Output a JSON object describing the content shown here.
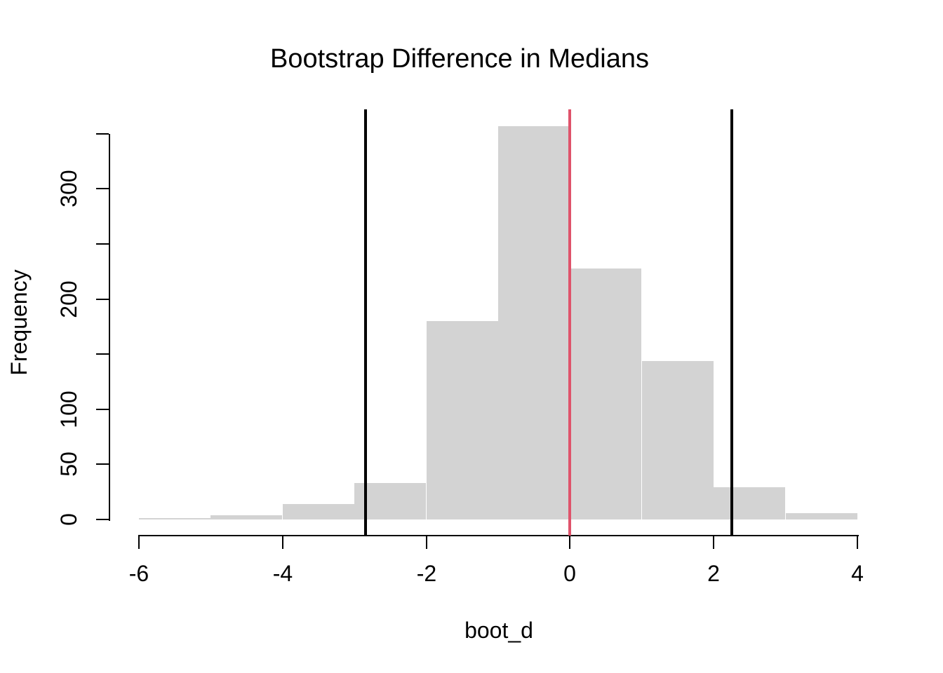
{
  "figure": {
    "title": "Bootstrap Difference in Medians",
    "xlabel": "boot_d",
    "ylabel": "Frequency"
  },
  "chart_data": {
    "type": "bar",
    "subtype": "histogram",
    "title": "Bootstrap Difference in Medians",
    "xlabel": "boot_d",
    "ylabel": "Frequency",
    "bin_breaks": [
      -6,
      -5,
      -4,
      -3,
      -2,
      -1,
      0,
      1,
      2,
      3,
      4
    ],
    "bin_counts": [
      1,
      4,
      14,
      33,
      180,
      357,
      228,
      144,
      29,
      6
    ],
    "x_ticks": [
      -6,
      -4,
      -2,
      0,
      2,
      4
    ],
    "y_ticks": [
      0,
      50,
      100,
      150,
      200,
      250,
      300,
      350
    ],
    "y_tick_labeled": [
      0,
      50,
      100,
      200,
      300
    ],
    "xlim": [
      -6.4,
      4.4
    ],
    "ylim": [
      -14,
      371
    ],
    "grid": false,
    "legend": false,
    "bar_color": "#d3d3d3",
    "axis_color": "#000000",
    "reference_lines": [
      {
        "value": -2.84,
        "color": "#000000"
      },
      {
        "value": 0,
        "color": "#df536b"
      },
      {
        "value": 2.25,
        "color": "#000000"
      }
    ]
  }
}
